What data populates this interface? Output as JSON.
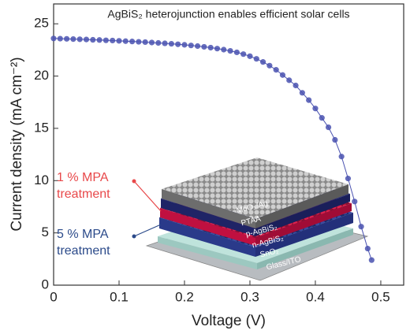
{
  "chart_data": {
    "type": "line",
    "title": "AgBiS₂ heterojunction enables efficient solar cells",
    "x_label": "Voltage (V)",
    "y_label": "Current density (mA cm⁻²)",
    "xlim": [
      0,
      0.535
    ],
    "ylim": [
      0,
      26.9
    ],
    "xticks": [
      0,
      0.1,
      0.2,
      0.3,
      0.4,
      0.5
    ],
    "yticks": [
      0,
      5,
      10,
      15,
      20,
      25
    ],
    "series": [
      {
        "color": "#4a52b0",
        "x": [
          0,
          0.01,
          0.02,
          0.03,
          0.04,
          0.05,
          0.06,
          0.07,
          0.08,
          0.09,
          0.1,
          0.11,
          0.12,
          0.13,
          0.14,
          0.15,
          0.16,
          0.17,
          0.18,
          0.19,
          0.2,
          0.21,
          0.22,
          0.23,
          0.24,
          0.25,
          0.26,
          0.27,
          0.28,
          0.29,
          0.3,
          0.31,
          0.32,
          0.33,
          0.34,
          0.35,
          0.36,
          0.37,
          0.38,
          0.39,
          0.4,
          0.41,
          0.42,
          0.43,
          0.44,
          0.45,
          0.46,
          0.47,
          0.48,
          0.486
        ],
        "values": [
          23.6,
          23.58,
          23.56,
          23.54,
          23.52,
          23.5,
          23.47,
          23.45,
          23.42,
          23.4,
          23.37,
          23.34,
          23.31,
          23.28,
          23.25,
          23.21,
          23.17,
          23.13,
          23.09,
          23.04,
          22.99,
          22.93,
          22.87,
          22.8,
          22.72,
          22.63,
          22.53,
          22.41,
          22.27,
          22.1,
          21.9,
          21.65,
          21.35,
          21.0,
          20.6,
          20.1,
          19.6,
          19.1,
          18.4,
          17.7,
          16.9,
          16.0,
          15.1,
          13.9,
          12.3,
          10.2,
          8.0,
          5.6,
          3.5,
          2.4
        ]
      }
    ],
    "annotations": [
      {
        "lines": [
          "1 % MPA",
          "treatment"
        ],
        "color": "#e8484a"
      },
      {
        "lines": [
          "5 % MPA",
          "treatment"
        ],
        "color": "#2b4a8a"
      }
    ],
    "layers": [
      "MoO₃/Ag",
      "PTAA",
      "p-AgBiS₂",
      "n-AgBiS₂",
      "SnO₂",
      "Glass/ITO"
    ]
  }
}
